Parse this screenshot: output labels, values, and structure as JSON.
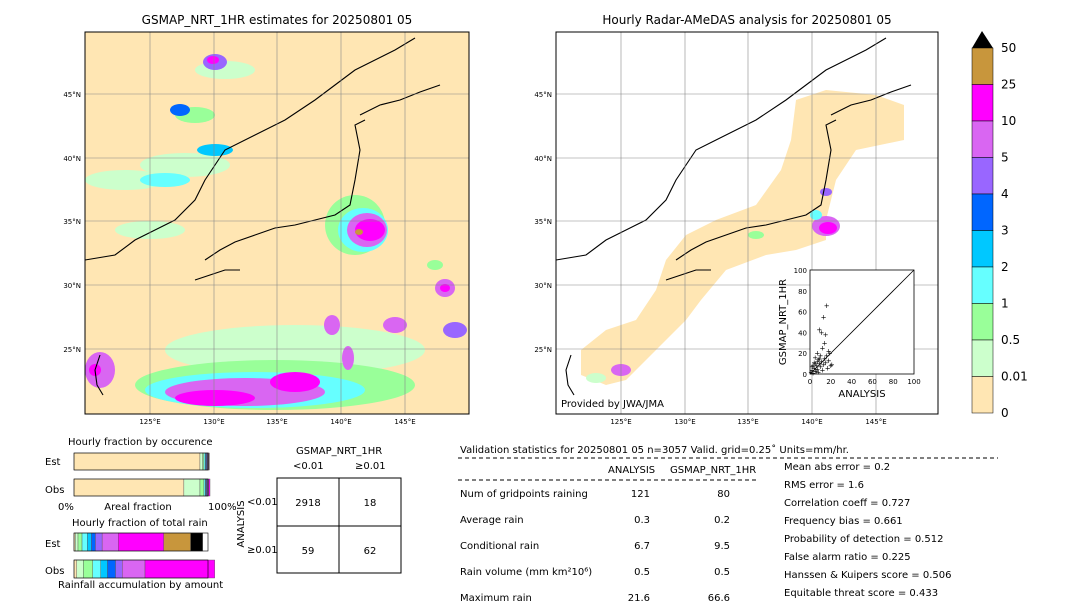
{
  "left_map": {
    "title": "GSMAP_NRT_1HR estimates for 20250801 05",
    "lat_labels": [
      "45°N",
      "40°N",
      "35°N",
      "30°N",
      "25°N"
    ],
    "lon_labels": [
      "125°E",
      "130°E",
      "135°E",
      "140°E",
      "145°E"
    ]
  },
  "right_map": {
    "title": "Hourly Radar-AMeDAS analysis for 20250801 05",
    "lat_labels": [
      "45°N",
      "40°N",
      "35°N",
      "30°N",
      "25°N"
    ],
    "lon_labels": [
      "125°E",
      "130°E",
      "135°E",
      "140°E",
      "145°E"
    ],
    "credit": "Provided by JWA/JMA"
  },
  "colorbar": {
    "labels": [
      "50",
      "25",
      "10",
      "5",
      "4",
      "3",
      "2",
      "1",
      "0.5",
      "0.01",
      "0"
    ],
    "colors": [
      "#c8963c",
      "#ff00ff",
      "#d966f2",
      "#9966ff",
      "#0066ff",
      "#00c8ff",
      "#66ffff",
      "#99ff99",
      "#ccffcc",
      "#ffe6b3"
    ]
  },
  "chart_data": [
    {
      "type": "scatter",
      "title": "",
      "xlabel": "ANALYSIS",
      "ylabel": "GSMAP_NRT_1HR",
      "xlim": [
        0,
        100
      ],
      "ylim": [
        0,
        100
      ],
      "x_ticks": [
        "0",
        "20",
        "40",
        "60",
        "80",
        "100"
      ],
      "y_ticks": [
        "0",
        "20",
        "40",
        "60",
        "80",
        "100"
      ],
      "diagonal": true,
      "points": [
        [
          1,
          2
        ],
        [
          2,
          4
        ],
        [
          3,
          1
        ],
        [
          4,
          6
        ],
        [
          5,
          3
        ],
        [
          6,
          8
        ],
        [
          7,
          5
        ],
        [
          8,
          2
        ],
        [
          9,
          10
        ],
        [
          10,
          7
        ],
        [
          11,
          12
        ],
        [
          12,
          4
        ],
        [
          13,
          9
        ],
        [
          14,
          15
        ],
        [
          15,
          11
        ],
        [
          16,
          18
        ],
        [
          17,
          6
        ],
        [
          18,
          13
        ],
        [
          19,
          20
        ],
        [
          20,
          8
        ],
        [
          21,
          9
        ],
        [
          3,
          8
        ],
        [
          5,
          10
        ],
        [
          7,
          12
        ],
        [
          9,
          15
        ],
        [
          2,
          7
        ],
        [
          4,
          11
        ],
        [
          6,
          3
        ],
        [
          8,
          14
        ],
        [
          10,
          18
        ],
        [
          12,
          25
        ],
        [
          14,
          30
        ],
        [
          11,
          40
        ],
        [
          9,
          43
        ],
        [
          15,
          38
        ],
        [
          16,
          66
        ],
        [
          13,
          55
        ],
        [
          18,
          22
        ],
        [
          7,
          20
        ],
        [
          5,
          16
        ]
      ]
    },
    {
      "type": "bar",
      "title": "Hourly fraction by occurence",
      "categories": [
        "Est",
        "Obs"
      ],
      "orientation": "horizontal",
      "x_ticks": [
        "0%",
        "100%"
      ],
      "xlabel": "Areal fraction",
      "series": [
        {
          "color": "#ffe6b3",
          "values": [
            0.94,
            0.82
          ]
        },
        {
          "color": "#ccffcc",
          "values": [
            0.02,
            0.12
          ]
        },
        {
          "color": "#99ff99",
          "values": [
            0.01,
            0.03
          ]
        },
        {
          "color": "#66ffff",
          "values": [
            0.01,
            0.01
          ]
        },
        {
          "color": "#00c8ff",
          "values": [
            0.005,
            0.005
          ]
        },
        {
          "color": "#0066ff",
          "values": [
            0.005,
            0.005
          ]
        },
        {
          "color": "#9966ff",
          "values": [
            0.005,
            0.005
          ]
        },
        {
          "color": "#d966f2",
          "values": [
            0.005,
            0.01
          ]
        },
        {
          "color": "#ff00ff",
          "values": [
            0.004,
            0.01
          ]
        },
        {
          "color": "#c8963c",
          "values": [
            0.003,
            0.0
          ]
        },
        {
          "color": "#000000",
          "values": [
            0.003,
            0.0
          ]
        }
      ]
    },
    {
      "type": "bar",
      "title": "Hourly fraction of total rain",
      "categories": [
        "Est",
        "Obs"
      ],
      "orientation": "horizontal",
      "xlabel": "Rainfall accumulation by amount",
      "series": [
        {
          "color": "#ffe6b3",
          "values": [
            0.01,
            0.02
          ]
        },
        {
          "color": "#ccffcc",
          "values": [
            0.02,
            0.05
          ]
        },
        {
          "color": "#99ff99",
          "values": [
            0.03,
            0.07
          ]
        },
        {
          "color": "#66ffff",
          "values": [
            0.04,
            0.06
          ]
        },
        {
          "color": "#00c8ff",
          "values": [
            0.03,
            0.05
          ]
        },
        {
          "color": "#0066ff",
          "values": [
            0.03,
            0.06
          ]
        },
        {
          "color": "#9966ff",
          "values": [
            0.05,
            0.05
          ]
        },
        {
          "color": "#d966f2",
          "values": [
            0.12,
            0.17
          ]
        },
        {
          "color": "#ff00ff",
          "values": [
            0.34,
            0.52
          ]
        },
        {
          "color": "#c8963c",
          "values": [
            0.2,
            0.0
          ]
        },
        {
          "color": "#000000",
          "values": [
            0.09,
            0.0
          ]
        }
      ]
    },
    {
      "type": "table",
      "title": "GSMAP_NRT_1HR",
      "row_axis": "ANALYSIS",
      "col_labels": [
        "<0.01",
        "≥0.01"
      ],
      "row_labels": [
        "<0.01",
        "≥0.01"
      ],
      "cells": [
        [
          "2918",
          "18"
        ],
        [
          "59",
          "62"
        ]
      ]
    }
  ],
  "validation": {
    "header": "Validation statistics for 20250801 05  n=3057 Valid. grid=0.25˚ Units=mm/hr.",
    "col_analysis": "ANALYSIS",
    "col_gsmap": "GSMAP_NRT_1HR",
    "rows": [
      {
        "label": "Num of gridpoints raining",
        "analysis": "121",
        "gsmap": "80"
      },
      {
        "label": "Average rain",
        "analysis": "0.3",
        "gsmap": "0.2"
      },
      {
        "label": "Conditional rain",
        "analysis": "6.7",
        "gsmap": "9.5"
      },
      {
        "label": "Rain volume (mm km²10⁶)",
        "analysis": "0.5",
        "gsmap": "0.5"
      },
      {
        "label": "Maximum rain",
        "analysis": "21.6",
        "gsmap": "66.6"
      }
    ],
    "scores": [
      "Mean abs error =    0.2",
      "RMS error =    1.6",
      "Correlation coeff =  0.727",
      "Frequency bias =  0.661",
      "Probability of detection =  0.512",
      "False alarm ratio =  0.225",
      "Hanssen & Kuipers score =  0.506",
      "Equitable threat score =  0.433"
    ]
  }
}
